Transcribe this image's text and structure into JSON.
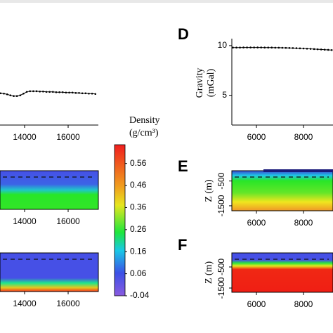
{
  "chart_data": [
    {
      "type": "line",
      "xlim": [
        12871,
        17387
      ],
      "xticks": [
        14000,
        16000
      ],
      "ylim": [
        0,
        12
      ],
      "x": [
        12900,
        13050,
        13200,
        13350,
        13500,
        13650,
        13800,
        13950,
        14100,
        14250,
        14400,
        14550,
        14700,
        14850,
        15000,
        15150,
        15300,
        15450,
        15600,
        15750,
        15900,
        16050,
        16200,
        16350,
        16500,
        16650,
        16800,
        16950,
        17100,
        17250
      ],
      "values": [
        4.6,
        4.55,
        4.45,
        4.3,
        4.2,
        4.2,
        4.3,
        4.55,
        4.8,
        4.9,
        4.9,
        4.9,
        4.85,
        4.85,
        4.8,
        4.8,
        4.8,
        4.75,
        4.75,
        4.75,
        4.7,
        4.7,
        4.7,
        4.65,
        4.65,
        4.6,
        4.6,
        4.55,
        4.55,
        4.5
      ]
    },
    {
      "type": "section",
      "xlim": [
        12871,
        17387
      ],
      "xticks": [
        14000,
        16000
      ]
    },
    {
      "type": "section",
      "xlim": [
        12871,
        17387
      ],
      "xticks": [
        14000,
        16000
      ]
    },
    {
      "type": "colorbar",
      "title": "Density",
      "unit": "(g/cm³)",
      "ylim": [
        -0.04,
        0.645
      ],
      "yticks": [
        0.56,
        0.46,
        0.36,
        0.26,
        0.16,
        0.06,
        -0.04
      ]
    },
    {
      "type": "line",
      "label": "D",
      "ylabel": [
        "Gravity",
        "(mGal)"
      ],
      "xlim": [
        4955,
        9254
      ],
      "xticks": [
        6000,
        8000
      ],
      "ylim": [
        2,
        10.7
      ],
      "yticks": [
        5,
        10
      ],
      "x": [
        5000,
        5150,
        5300,
        5450,
        5600,
        5750,
        5900,
        6050,
        6200,
        6350,
        6500,
        6650,
        6800,
        6950,
        7100,
        7250,
        7400,
        7550,
        7700,
        7850,
        8000,
        8150,
        8300,
        8450,
        8600,
        8750,
        8900,
        9050,
        9200
      ],
      "values": [
        9.8,
        9.8,
        9.8,
        9.81,
        9.81,
        9.81,
        9.81,
        9.81,
        9.81,
        9.8,
        9.8,
        9.8,
        9.79,
        9.79,
        9.78,
        9.77,
        9.76,
        9.75,
        9.74,
        9.72,
        9.71,
        9.69,
        9.67,
        9.65,
        9.63,
        9.61,
        9.59,
        9.57,
        9.55
      ]
    },
    {
      "type": "section",
      "label": "E",
      "ylabel": "Z (m)",
      "xlim": [
        4955,
        9254
      ],
      "xticks": [
        6000,
        8000
      ],
      "ylim": [
        -1700,
        0
      ],
      "yticks": [
        -500,
        -1500
      ]
    },
    {
      "type": "section",
      "label": "F",
      "ylabel": "Z (m)",
      "xlim": [
        4955,
        9254
      ],
      "xticks": [
        6000,
        8000
      ],
      "ylim": [
        -1700,
        0
      ],
      "yticks": [
        -500,
        -1500
      ]
    }
  ]
}
